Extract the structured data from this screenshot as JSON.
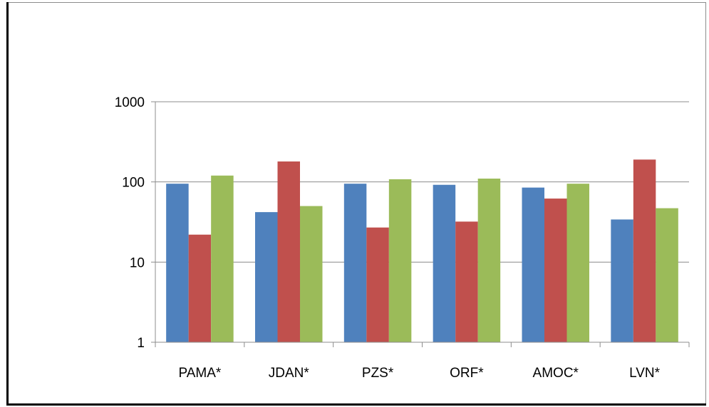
{
  "chart_data": {
    "type": "bar",
    "categories": [
      "PAMA*",
      "JDAN*",
      "PZS*",
      "ORF*",
      "AMOC*",
      "LVN*"
    ],
    "series": [
      {
        "color": "#4F81BD",
        "values": [
          95,
          42,
          95,
          92,
          85,
          34
        ]
      },
      {
        "color": "#C0504D",
        "values": [
          22,
          180,
          27,
          32,
          62,
          190
        ]
      },
      {
        "color": "#9BBB59",
        "values": [
          120,
          50,
          108,
          110,
          95,
          47
        ]
      }
    ],
    "y_scale": "log",
    "ylim": [
      1,
      1000
    ],
    "y_ticks": [
      1,
      10,
      100,
      1000
    ],
    "y_tick_labels": [
      "1",
      "10",
      "100",
      "1000"
    ],
    "grid": true,
    "legend": "none",
    "title": "",
    "xlabel": "",
    "ylabel": ""
  }
}
